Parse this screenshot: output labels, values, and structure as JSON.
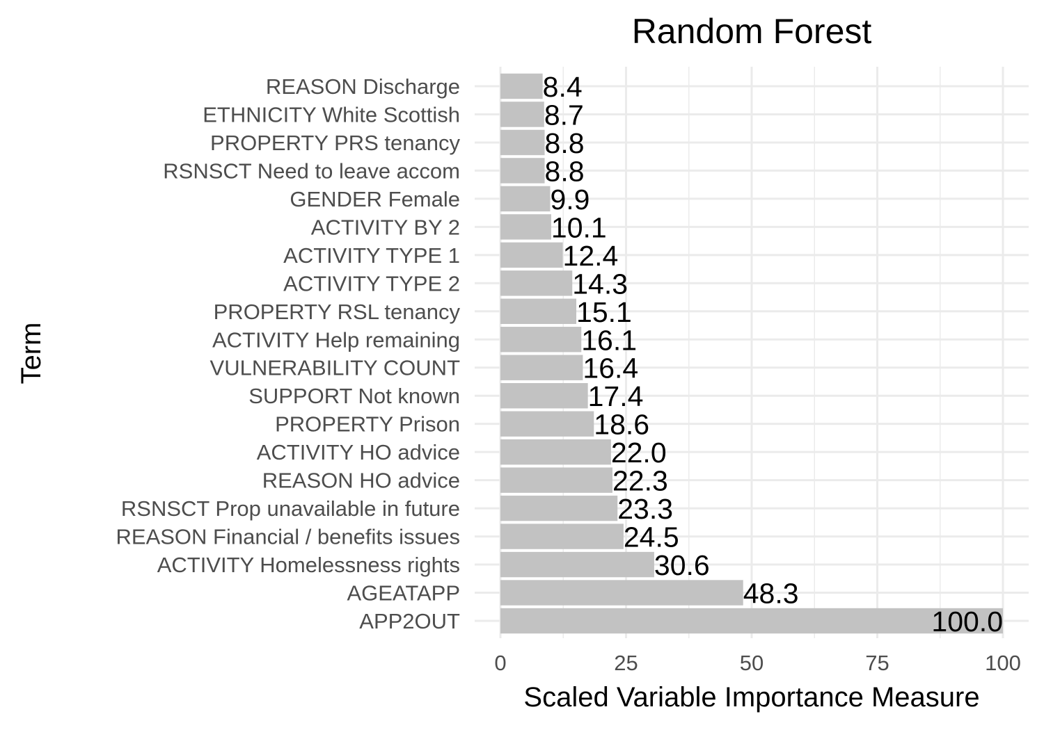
{
  "chart_data": {
    "type": "bar",
    "orientation": "horizontal",
    "title": "Random Forest",
    "xlabel": "Scaled Variable Importance Measure",
    "ylabel": "Term",
    "xlim": [
      0,
      100
    ],
    "xticks": [
      0,
      25,
      50,
      75,
      100
    ],
    "categories": [
      "REASON Discharge",
      "ETHNICITY White Scottish",
      "PROPERTY PRS tenancy",
      "RSNSCT Need to leave accom",
      "GENDER Female",
      "ACTIVITY BY 2",
      "ACTIVITY TYPE 1",
      "ACTIVITY TYPE 2",
      "PROPERTY RSL tenancy",
      "ACTIVITY Help remaining",
      "VULNERABILITY COUNT",
      "SUPPORT Not known",
      "PROPERTY Prison",
      "ACTIVITY HO advice",
      "REASON HO advice",
      "RSNSCT Prop unavailable in future",
      "REASON Financial / benefits issues",
      "ACTIVITY Homelessness rights",
      "AGEATAPP",
      "APP2OUT"
    ],
    "values": [
      8.4,
      8.7,
      8.8,
      8.8,
      9.9,
      10.1,
      12.4,
      14.3,
      15.1,
      16.1,
      16.4,
      17.4,
      18.6,
      22.0,
      22.3,
      23.3,
      24.5,
      30.6,
      48.3,
      100.0
    ],
    "value_labels": [
      "8.4",
      "8.7",
      "8.8",
      "8.8",
      "9.9",
      "10.1",
      "12.4",
      "14.3",
      "15.1",
      "16.1",
      "16.4",
      "17.4",
      "18.6",
      "22.0",
      "22.3",
      "23.3",
      "24.5",
      "30.6",
      "48.3",
      "100.0"
    ],
    "bar_color": "#c2c2c2",
    "grid": true,
    "grid_color": "#ebebeb",
    "legend": "none"
  }
}
